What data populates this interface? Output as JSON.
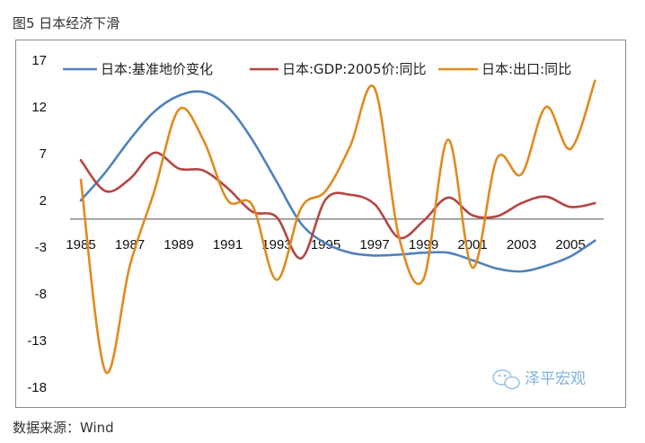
{
  "figure_title": "图5 日本经济下滑",
  "source_note": "数据来源：Wind",
  "watermark": {
    "text": "泽平宏观",
    "icon": "wechat-icon"
  },
  "colors": {
    "blue": "#4f81bd",
    "red": "#b54542",
    "orange": "#e08a1e",
    "axis": "#888888"
  },
  "chart_data": {
    "type": "line",
    "title": "",
    "xlabel": "",
    "ylabel": "",
    "xlim": [
      1985,
      2006.5
    ],
    "ylim": [
      -18,
      17
    ],
    "y_ticks": [
      17,
      12,
      7,
      2,
      -3,
      -8,
      -13,
      -18
    ],
    "x_ticks": [
      1985,
      1987,
      1989,
      1991,
      1993,
      1995,
      1997,
      1999,
      2001,
      2003,
      2005
    ],
    "legend_position": "top",
    "grid": false,
    "series": [
      {
        "name": "日本:基准地价变化",
        "color": "#4f81bd",
        "x": [
          1985,
          1986,
          1987,
          1988,
          1989,
          1990,
          1991,
          1992,
          1993,
          1994,
          1995,
          1996,
          1997,
          1998,
          1999,
          2000,
          2001,
          2002,
          2003,
          2004,
          2005,
          2006
        ],
        "values": [
          2.0,
          5.0,
          8.5,
          11.5,
          13.2,
          13.6,
          12.0,
          8.5,
          4.0,
          -0.5,
          -2.6,
          -3.6,
          -3.9,
          -3.8,
          -3.6,
          -3.6,
          -4.4,
          -5.3,
          -5.6,
          -5.0,
          -4.0,
          -2.3
        ]
      },
      {
        "name": "日本:GDP:2005价:同比",
        "color": "#b54542",
        "x": [
          1985,
          1986,
          1987,
          1988,
          1989,
          1990,
          1991,
          1992,
          1993,
          1994,
          1995,
          1996,
          1997,
          1998,
          1999,
          2000,
          2001,
          2002,
          2003,
          2004,
          2005,
          2006
        ],
        "values": [
          6.3,
          3.0,
          4.3,
          7.1,
          5.4,
          5.2,
          3.3,
          0.8,
          0.2,
          -4.2,
          2.1,
          2.6,
          1.6,
          -2.0,
          -0.2,
          2.3,
          0.4,
          0.3,
          1.7,
          2.4,
          1.3,
          1.7
        ]
      },
      {
        "name": "日本:出口:同比",
        "color": "#e08a1e",
        "x": [
          1985,
          1986,
          1987,
          1988,
          1989,
          1990,
          1991,
          1992,
          1993,
          1994,
          1995,
          1996,
          1997,
          1998,
          1999,
          2000,
          2001,
          2002,
          2003,
          2004,
          2005,
          2006
        ],
        "values": [
          4.2,
          -16.3,
          -5.0,
          3.0,
          11.7,
          8.5,
          2.0,
          1.5,
          -6.5,
          1.2,
          3.0,
          7.8,
          14.0,
          -2.0,
          -6.4,
          8.5,
          -5.2,
          6.5,
          4.8,
          12.0,
          7.5,
          14.8
        ]
      }
    ]
  }
}
